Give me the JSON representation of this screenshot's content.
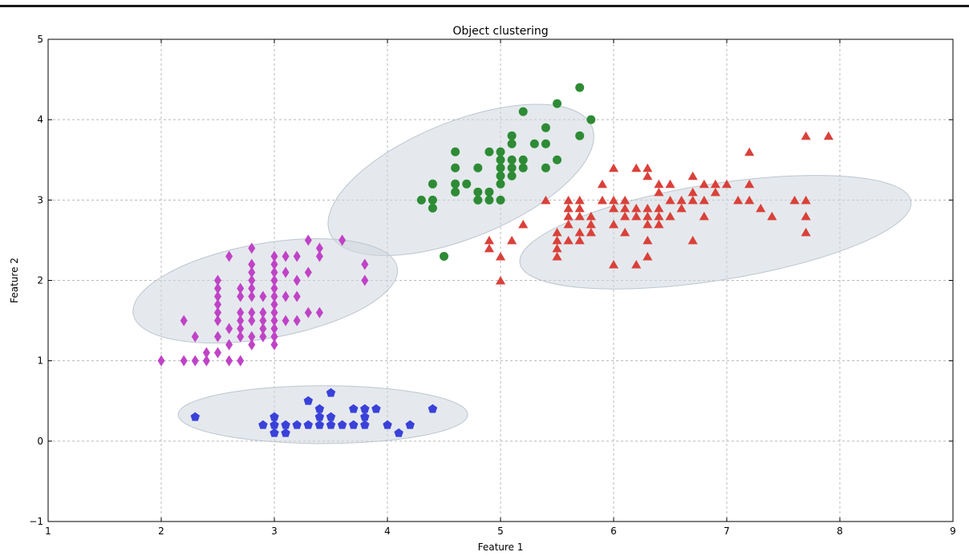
{
  "chart_data": {
    "type": "scatter",
    "title": "Object clustering",
    "xlabel": "Feature 1",
    "ylabel": "Feature 2",
    "xlim": [
      1,
      9
    ],
    "ylim": [
      -1,
      5
    ],
    "xticks": [
      "1",
      "2",
      "3",
      "4",
      "5",
      "6",
      "7",
      "8",
      "9"
    ],
    "yticks": [
      "−1",
      "0",
      "1",
      "2",
      "3",
      "4",
      "5"
    ],
    "grid": true,
    "clusters": [
      {
        "cx": 4.65,
        "cy": 3.25,
        "width": 2.5,
        "height": 1.45,
        "angle_deg": 22,
        "color": "#cfd7de"
      },
      {
        "cx": 6.9,
        "cy": 2.6,
        "width": 3.5,
        "height": 1.2,
        "angle_deg": 9,
        "color": "#cfd7de"
      },
      {
        "cx": 2.92,
        "cy": 1.87,
        "width": 2.37,
        "height": 1.18,
        "angle_deg": 10,
        "color": "#cfd7de"
      },
      {
        "cx": 3.43,
        "cy": 0.33,
        "width": 2.56,
        "height": 0.72,
        "angle_deg": 0,
        "color": "#cfd7de"
      }
    ],
    "series": [
      {
        "marker": "circle",
        "color": "#2e8b35",
        "points": [
          [
            4.3,
            3.0
          ],
          [
            4.4,
            3.0
          ],
          [
            4.4,
            2.9
          ],
          [
            4.4,
            3.2
          ],
          [
            4.5,
            2.3
          ],
          [
            4.6,
            3.1
          ],
          [
            4.6,
            3.2
          ],
          [
            4.6,
            3.4
          ],
          [
            4.6,
            3.6
          ],
          [
            4.7,
            3.2
          ],
          [
            4.8,
            3.0
          ],
          [
            4.8,
            3.1
          ],
          [
            4.8,
            3.4
          ],
          [
            4.9,
            3.0
          ],
          [
            4.9,
            3.1
          ],
          [
            4.9,
            3.6
          ],
          [
            5.0,
            3.0
          ],
          [
            5.0,
            3.2
          ],
          [
            5.0,
            3.3
          ],
          [
            5.0,
            3.4
          ],
          [
            5.0,
            3.5
          ],
          [
            5.0,
            3.6
          ],
          [
            5.1,
            3.3
          ],
          [
            5.1,
            3.4
          ],
          [
            5.1,
            3.5
          ],
          [
            5.1,
            3.7
          ],
          [
            5.1,
            3.8
          ],
          [
            5.2,
            3.4
          ],
          [
            5.2,
            3.5
          ],
          [
            5.2,
            4.1
          ],
          [
            5.3,
            3.7
          ],
          [
            5.4,
            3.4
          ],
          [
            5.4,
            3.7
          ],
          [
            5.4,
            3.9
          ],
          [
            5.5,
            3.5
          ],
          [
            5.5,
            4.2
          ],
          [
            5.7,
            3.8
          ],
          [
            5.7,
            4.4
          ],
          [
            5.8,
            4.0
          ]
        ]
      },
      {
        "marker": "triangle",
        "color": "#d9413a",
        "points": [
          [
            4.9,
            2.4
          ],
          [
            4.9,
            2.5
          ],
          [
            5.0,
            2.0
          ],
          [
            5.0,
            2.3
          ],
          [
            5.1,
            2.5
          ],
          [
            5.2,
            2.7
          ],
          [
            5.4,
            3.0
          ],
          [
            5.5,
            2.3
          ],
          [
            5.5,
            2.4
          ],
          [
            5.5,
            2.5
          ],
          [
            5.5,
            2.6
          ],
          [
            5.6,
            2.5
          ],
          [
            5.6,
            2.7
          ],
          [
            5.6,
            2.8
          ],
          [
            5.6,
            2.9
          ],
          [
            5.6,
            3.0
          ],
          [
            5.7,
            2.5
          ],
          [
            5.7,
            2.6
          ],
          [
            5.7,
            2.8
          ],
          [
            5.7,
            2.9
          ],
          [
            5.7,
            3.0
          ],
          [
            5.8,
            2.6
          ],
          [
            5.8,
            2.7
          ],
          [
            5.8,
            2.8
          ],
          [
            5.9,
            3.0
          ],
          [
            5.9,
            3.2
          ],
          [
            6.0,
            2.2
          ],
          [
            6.0,
            2.7
          ],
          [
            6.0,
            2.9
          ],
          [
            6.0,
            3.0
          ],
          [
            6.0,
            3.4
          ],
          [
            6.1,
            2.6
          ],
          [
            6.1,
            2.8
          ],
          [
            6.1,
            2.9
          ],
          [
            6.1,
            3.0
          ],
          [
            6.2,
            2.2
          ],
          [
            6.2,
            2.8
          ],
          [
            6.2,
            2.9
          ],
          [
            6.2,
            3.4
          ],
          [
            6.3,
            2.3
          ],
          [
            6.3,
            2.5
          ],
          [
            6.3,
            2.7
          ],
          [
            6.3,
            2.8
          ],
          [
            6.3,
            2.9
          ],
          [
            6.3,
            3.3
          ],
          [
            6.3,
            3.4
          ],
          [
            6.4,
            2.7
          ],
          [
            6.4,
            2.8
          ],
          [
            6.4,
            2.9
          ],
          [
            6.4,
            3.1
          ],
          [
            6.4,
            3.2
          ],
          [
            6.5,
            2.8
          ],
          [
            6.5,
            3.0
          ],
          [
            6.5,
            3.2
          ],
          [
            6.6,
            2.9
          ],
          [
            6.6,
            3.0
          ],
          [
            6.7,
            2.5
          ],
          [
            6.7,
            3.0
          ],
          [
            6.7,
            3.1
          ],
          [
            6.7,
            3.3
          ],
          [
            6.8,
            2.8
          ],
          [
            6.8,
            3.0
          ],
          [
            6.8,
            3.2
          ],
          [
            6.9,
            3.1
          ],
          [
            6.9,
            3.2
          ],
          [
            7.0,
            3.2
          ],
          [
            7.1,
            3.0
          ],
          [
            7.2,
            3.0
          ],
          [
            7.2,
            3.2
          ],
          [
            7.2,
            3.6
          ],
          [
            7.3,
            2.9
          ],
          [
            7.4,
            2.8
          ],
          [
            7.6,
            3.0
          ],
          [
            7.7,
            2.6
          ],
          [
            7.7,
            2.8
          ],
          [
            7.7,
            3.0
          ],
          [
            7.7,
            3.8
          ],
          [
            7.9,
            3.8
          ]
        ]
      },
      {
        "marker": "diamond",
        "color": "#c043c7",
        "points": [
          [
            2.0,
            1.0
          ],
          [
            2.2,
            1.0
          ],
          [
            2.2,
            1.5
          ],
          [
            2.3,
            1.0
          ],
          [
            2.3,
            1.3
          ],
          [
            2.4,
            1.0
          ],
          [
            2.4,
            1.1
          ],
          [
            2.5,
            1.1
          ],
          [
            2.5,
            1.3
          ],
          [
            2.5,
            1.5
          ],
          [
            2.5,
            1.6
          ],
          [
            2.5,
            1.7
          ],
          [
            2.5,
            1.8
          ],
          [
            2.5,
            1.9
          ],
          [
            2.5,
            2.0
          ],
          [
            2.6,
            1.0
          ],
          [
            2.6,
            1.2
          ],
          [
            2.6,
            1.4
          ],
          [
            2.6,
            2.3
          ],
          [
            2.7,
            1.0
          ],
          [
            2.7,
            1.3
          ],
          [
            2.7,
            1.4
          ],
          [
            2.7,
            1.5
          ],
          [
            2.7,
            1.6
          ],
          [
            2.7,
            1.8
          ],
          [
            2.7,
            1.9
          ],
          [
            2.8,
            1.2
          ],
          [
            2.8,
            1.3
          ],
          [
            2.8,
            1.5
          ],
          [
            2.8,
            1.6
          ],
          [
            2.8,
            1.8
          ],
          [
            2.8,
            1.9
          ],
          [
            2.8,
            2.0
          ],
          [
            2.8,
            2.1
          ],
          [
            2.8,
            2.2
          ],
          [
            2.8,
            2.4
          ],
          [
            2.9,
            1.3
          ],
          [
            2.9,
            1.4
          ],
          [
            2.9,
            1.5
          ],
          [
            2.9,
            1.6
          ],
          [
            2.9,
            1.8
          ],
          [
            3.0,
            1.2
          ],
          [
            3.0,
            1.3
          ],
          [
            3.0,
            1.4
          ],
          [
            3.0,
            1.5
          ],
          [
            3.0,
            1.6
          ],
          [
            3.0,
            1.7
          ],
          [
            3.0,
            1.8
          ],
          [
            3.0,
            1.9
          ],
          [
            3.0,
            2.0
          ],
          [
            3.0,
            2.1
          ],
          [
            3.0,
            2.2
          ],
          [
            3.0,
            2.3
          ],
          [
            3.1,
            1.5
          ],
          [
            3.1,
            1.8
          ],
          [
            3.1,
            2.1
          ],
          [
            3.1,
            2.3
          ],
          [
            3.2,
            1.5
          ],
          [
            3.2,
            1.8
          ],
          [
            3.2,
            2.0
          ],
          [
            3.2,
            2.3
          ],
          [
            3.3,
            1.6
          ],
          [
            3.3,
            2.1
          ],
          [
            3.3,
            2.5
          ],
          [
            3.4,
            1.6
          ],
          [
            3.4,
            2.3
          ],
          [
            3.4,
            2.4
          ],
          [
            3.6,
            2.5
          ],
          [
            3.8,
            2.0
          ],
          [
            3.8,
            2.2
          ]
        ]
      },
      {
        "marker": "pentagon",
        "color": "#3a41d9",
        "points": [
          [
            2.3,
            0.3
          ],
          [
            2.9,
            0.2
          ],
          [
            3.0,
            0.1
          ],
          [
            3.0,
            0.2
          ],
          [
            3.0,
            0.3
          ],
          [
            3.1,
            0.1
          ],
          [
            3.1,
            0.2
          ],
          [
            3.2,
            0.2
          ],
          [
            3.3,
            0.2
          ],
          [
            3.3,
            0.5
          ],
          [
            3.4,
            0.2
          ],
          [
            3.4,
            0.3
          ],
          [
            3.4,
            0.4
          ],
          [
            3.5,
            0.2
          ],
          [
            3.5,
            0.3
          ],
          [
            3.5,
            0.6
          ],
          [
            3.6,
            0.2
          ],
          [
            3.7,
            0.2
          ],
          [
            3.7,
            0.4
          ],
          [
            3.8,
            0.2
          ],
          [
            3.8,
            0.3
          ],
          [
            3.8,
            0.4
          ],
          [
            3.9,
            0.4
          ],
          [
            4.0,
            0.2
          ],
          [
            4.1,
            0.1
          ],
          [
            4.2,
            0.2
          ],
          [
            4.4,
            0.4
          ]
        ]
      }
    ]
  }
}
